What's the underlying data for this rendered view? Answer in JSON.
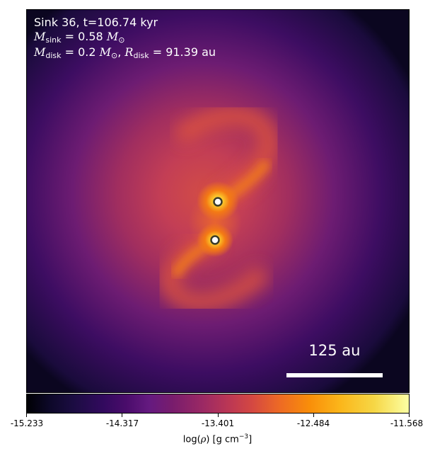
{
  "annotation": {
    "line1": "Sink 36, t=106.74 kyr",
    "msink_symbol": "M",
    "msink_sub": "sink",
    "msink_value": " = 0.58 ",
    "msun_symbol": "M",
    "msun_sub": "⊙",
    "mdisk_symbol": "M",
    "mdisk_sub": "disk",
    "mdisk_value": " = 0.2 ",
    "rdisk_symbol": "R",
    "rdisk_sub": "disk",
    "rdisk_value": " = 91.39 au"
  },
  "scale_bar": {
    "label": "125 au"
  },
  "colorbar": {
    "colormap": "inferno",
    "ticks": [
      "-15.233",
      "-14.317",
      "-13.401",
      "-12.484",
      "-11.568"
    ],
    "label_prefix": "log(",
    "label_rho": "ρ",
    "label_mid": ") [g cm",
    "label_exp": "−3",
    "label_suffix": "]"
  },
  "sinks": [
    {
      "name": "sink-upper"
    },
    {
      "name": "sink-lower"
    }
  ],
  "colors": {
    "sink_fill": "#ffffff",
    "sink_ring": "#3b3b2a",
    "disk_core": "#fff29a",
    "disk_mid": "#f98e09",
    "envelope": "#c0404f",
    "background": "#1b0c41"
  }
}
